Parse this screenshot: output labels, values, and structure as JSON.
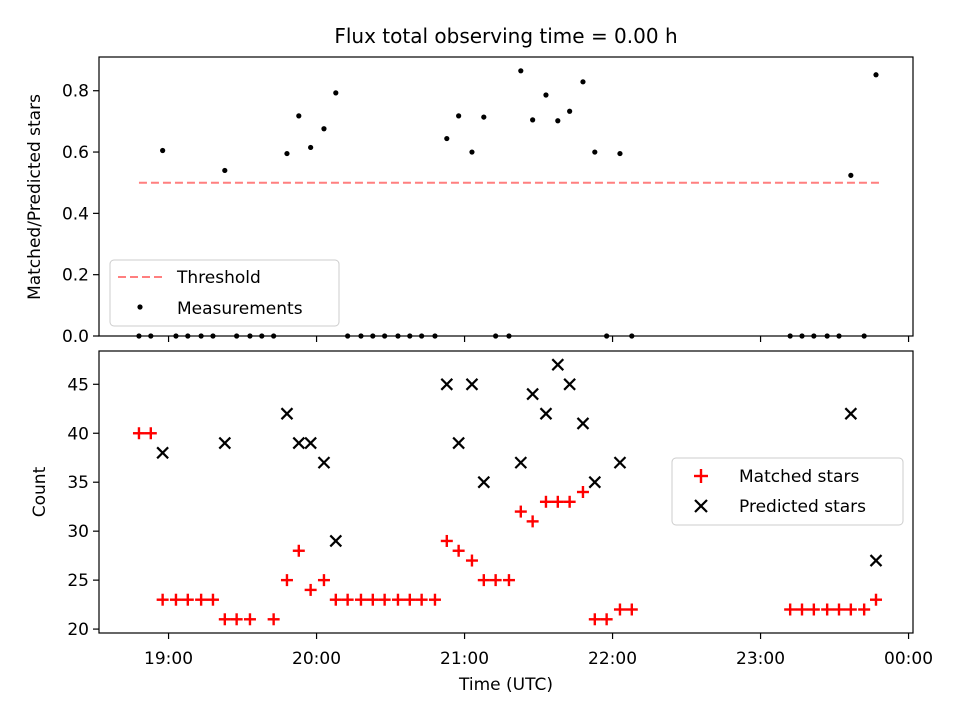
{
  "chart_data": [
    {
      "type": "scatter",
      "title": "Flux total observing time = 0.00 h",
      "xlabel": "",
      "ylabel": "Matched/Predicted stars",
      "xlim": [
        18.53,
        24.03
      ],
      "ylim": [
        0.0,
        0.91
      ],
      "yticks": [
        0.0,
        0.2,
        0.4,
        0.6,
        0.8
      ],
      "ytick_labels": [
        "0.0",
        "0.2",
        "0.4",
        "0.6",
        "0.8"
      ],
      "legend_position": "lower-left",
      "series": [
        {
          "name": "Threshold",
          "style": "dashed-line",
          "color": "#ff7f7f",
          "x": [
            18.8,
            23.8
          ],
          "y": [
            0.5,
            0.5
          ]
        },
        {
          "name": "Measurements",
          "style": "dot",
          "color": "#000000",
          "x": [
            18.8,
            18.88,
            18.96,
            19.05,
            19.13,
            19.22,
            19.3,
            19.38,
            19.46,
            19.55,
            19.63,
            19.71,
            19.8,
            19.88,
            19.96,
            20.05,
            20.13,
            20.21,
            20.3,
            20.38,
            20.46,
            20.55,
            20.63,
            20.71,
            20.8,
            20.88,
            20.96,
            21.05,
            21.13,
            21.21,
            21.3,
            21.38,
            21.46,
            21.55,
            21.63,
            21.71,
            21.8,
            21.88,
            21.96,
            22.05,
            22.13,
            23.2,
            23.28,
            23.36,
            23.45,
            23.53,
            23.61,
            23.7,
            23.78
          ],
          "y": [
            0.0,
            0.0,
            0.605,
            0.0,
            0.0,
            0.0,
            0.0,
            0.54,
            0.0,
            0.0,
            0.0,
            0.0,
            0.595,
            0.718,
            0.615,
            0.676,
            0.793,
            0.0,
            0.0,
            0.0,
            0.0,
            0.0,
            0.0,
            0.0,
            0.0,
            0.644,
            0.718,
            0.6,
            0.714,
            0.0,
            0.0,
            0.865,
            0.705,
            0.786,
            0.702,
            0.733,
            0.829,
            0.6,
            0.0,
            0.595,
            0.0,
            0.0,
            0.0,
            0.0,
            0.0,
            0.0,
            0.524,
            0.0,
            0.852
          ]
        }
      ]
    },
    {
      "type": "scatter",
      "title": "",
      "xlabel": "Time (UTC)",
      "ylabel": "Count",
      "xlim": [
        18.53,
        24.03
      ],
      "ylim": [
        19.6,
        48.4
      ],
      "xticks": [
        19.0,
        20.0,
        21.0,
        22.0,
        23.0,
        24.0
      ],
      "xtick_labels": [
        "19:00",
        "20:00",
        "21:00",
        "22:00",
        "23:00",
        "00:00"
      ],
      "yticks": [
        20,
        25,
        30,
        35,
        40,
        45
      ],
      "ytick_labels": [
        "20",
        "25",
        "30",
        "35",
        "40",
        "45"
      ],
      "legend_position": "center-right",
      "series": [
        {
          "name": "Matched stars",
          "style": "plus",
          "color": "#ff0000",
          "x": [
            18.8,
            18.88,
            18.96,
            19.05,
            19.13,
            19.22,
            19.3,
            19.38,
            19.46,
            19.55,
            19.71,
            19.8,
            19.88,
            19.96,
            20.05,
            20.13,
            20.21,
            20.3,
            20.38,
            20.46,
            20.55,
            20.63,
            20.71,
            20.8,
            20.88,
            20.96,
            21.05,
            21.13,
            21.21,
            21.3,
            21.38,
            21.46,
            21.55,
            21.63,
            21.71,
            21.8,
            21.88,
            21.96,
            22.05,
            22.13,
            23.2,
            23.28,
            23.36,
            23.45,
            23.53,
            23.61,
            23.7,
            23.78
          ],
          "y": [
            40,
            40,
            23,
            23,
            23,
            23,
            23,
            21,
            21,
            21,
            21,
            25,
            28,
            24,
            25,
            23,
            23,
            23,
            23,
            23,
            23,
            23,
            23,
            23,
            29,
            28,
            27,
            25,
            25,
            25,
            32,
            31,
            33,
            33,
            33,
            34,
            21,
            21,
            22,
            22,
            22,
            22,
            22,
            22,
            22,
            22,
            22,
            23
          ]
        },
        {
          "name": "Predicted stars",
          "style": "x",
          "color": "#000000",
          "x": [
            18.96,
            19.38,
            19.8,
            19.88,
            19.96,
            20.05,
            20.13,
            20.88,
            20.96,
            21.05,
            21.13,
            21.38,
            21.46,
            21.55,
            21.63,
            21.71,
            21.8,
            21.88,
            22.05,
            23.61,
            23.78
          ],
          "y": [
            38,
            39,
            42,
            39,
            39,
            37,
            29,
            45,
            39,
            45,
            35,
            37,
            44,
            42,
            47,
            45,
            41,
            35,
            37,
            42,
            27
          ]
        }
      ]
    }
  ]
}
